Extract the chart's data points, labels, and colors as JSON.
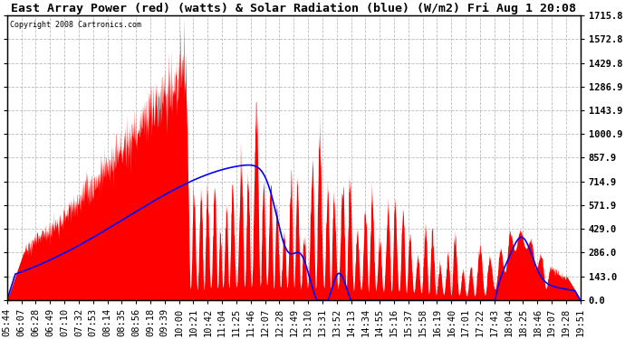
{
  "title": "East Array Power (red) (watts) & Solar Radiation (blue) (W/m2) Fri Aug 1 20:08",
  "copyright": "Copyright 2008 Cartronics.com",
  "ylabel_right_ticks": [
    0.0,
    143.0,
    286.0,
    429.0,
    571.9,
    714.9,
    857.9,
    1000.9,
    1143.9,
    1286.9,
    1429.8,
    1572.8,
    1715.8
  ],
  "ymax": 1715.8,
  "background_color": "#ffffff",
  "plot_bg_color": "#ffffff",
  "grid_color": "#aaaaaa",
  "red_color": "#ff0000",
  "blue_color": "#0000ff",
  "title_fontsize": 9.5,
  "tick_fontsize": 7.5,
  "x_tick_labels": [
    "05:44",
    "06:07",
    "06:28",
    "06:49",
    "07:10",
    "07:32",
    "07:53",
    "08:14",
    "08:35",
    "08:56",
    "09:18",
    "09:39",
    "10:00",
    "10:21",
    "10:42",
    "11:04",
    "11:25",
    "11:46",
    "12:07",
    "12:28",
    "12:49",
    "13:10",
    "13:31",
    "13:52",
    "14:13",
    "14:34",
    "14:55",
    "15:16",
    "15:37",
    "15:58",
    "16:19",
    "16:40",
    "17:01",
    "17:22",
    "17:43",
    "18:04",
    "18:25",
    "18:46",
    "19:07",
    "19:28",
    "19:51"
  ]
}
